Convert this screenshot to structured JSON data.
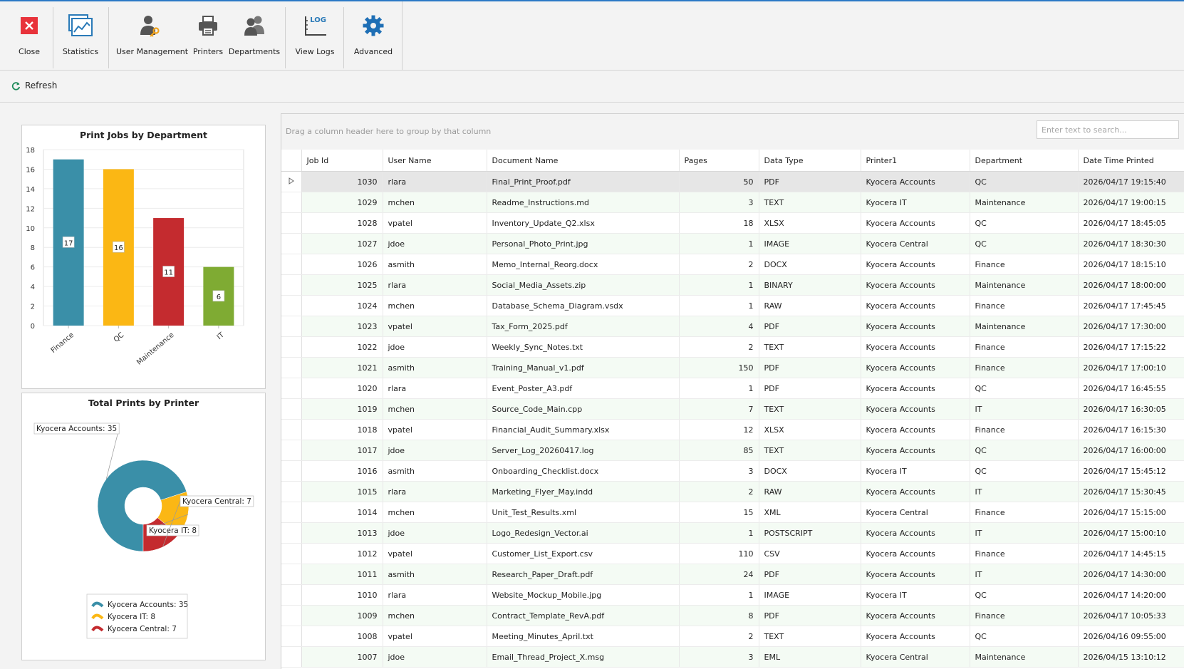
{
  "ribbon": {
    "close": "Close",
    "statistics": "Statistics",
    "user_management": "User Management",
    "printers": "Printers",
    "departments": "Departments",
    "view_logs": "View Logs",
    "view_logs_icon_text": "LOG",
    "advanced": "Advanced"
  },
  "toolbar": {
    "refresh": "Refresh"
  },
  "colors": {
    "teal": "#3a8fa8",
    "yellow": "#fbb714",
    "red": "#c42b2f",
    "green": "#7fab33",
    "accent": "#2b79c6"
  },
  "bar_chart": {
    "chart_data": {
      "type": "bar",
      "title": "Print Jobs by Department",
      "categories": [
        "Finance",
        "QC",
        "Maintenance",
        "IT"
      ],
      "values": [
        17,
        16,
        11,
        6
      ],
      "yticks": [
        "0",
        "2",
        "4",
        "6",
        "8",
        "10",
        "12",
        "14",
        "16",
        "18"
      ],
      "ylim": [
        0,
        18
      ],
      "colors": [
        "#3a8fa8",
        "#fbb714",
        "#c42b2f",
        "#7fab33"
      ]
    }
  },
  "pie_chart": {
    "chart_data": {
      "type": "pie",
      "title": "Total Prints by Printer",
      "labels": [
        "Kyocera Accounts",
        "Kyocera IT",
        "Kyocera Central"
      ],
      "values": [
        35,
        8,
        7
      ],
      "callouts": [
        "Kyocera Accounts: 35",
        "Kyocera IT: 8",
        "Kyocera Central: 7"
      ],
      "legend": [
        "Kyocera Accounts: 35",
        "Kyocera IT: 8",
        "Kyocera Central: 7"
      ],
      "colors": [
        "#3a8fa8",
        "#fbb714",
        "#c42b2f"
      ]
    }
  },
  "grid": {
    "group_hint": "Drag a column header here to group by that column",
    "search_placeholder": "Enter text to search...",
    "columns": [
      "Job Id",
      "User Name",
      "Document Name",
      "Pages",
      "Data Type",
      "Printer1",
      "Department",
      "Date Time Printed"
    ],
    "rows": [
      [
        "1030",
        "rlara",
        "Final_Print_Proof.pdf",
        "50",
        "PDF",
        "Kyocera Accounts",
        "QC",
        "2026/04/17 19:15:40"
      ],
      [
        "1029",
        "mchen",
        "Readme_Instructions.md",
        "3",
        "TEXT",
        "Kyocera IT",
        "Maintenance",
        "2026/04/17 19:00:15"
      ],
      [
        "1028",
        "vpatel",
        "Inventory_Update_Q2.xlsx",
        "18",
        "XLSX",
        "Kyocera Accounts",
        "QC",
        "2026/04/17 18:45:05"
      ],
      [
        "1027",
        "jdoe",
        "Personal_Photo_Print.jpg",
        "1",
        "IMAGE",
        "Kyocera Central",
        "QC",
        "2026/04/17 18:30:30"
      ],
      [
        "1026",
        "asmith",
        "Memo_Internal_Reorg.docx",
        "2",
        "DOCX",
        "Kyocera Accounts",
        "Finance",
        "2026/04/17 18:15:10"
      ],
      [
        "1025",
        "rlara",
        "Social_Media_Assets.zip",
        "1",
        "BINARY",
        "Kyocera Accounts",
        "Maintenance",
        "2026/04/17 18:00:00"
      ],
      [
        "1024",
        "mchen",
        "Database_Schema_Diagram.vsdx",
        "1",
        "RAW",
        "Kyocera Accounts",
        "Finance",
        "2026/04/17 17:45:45"
      ],
      [
        "1023",
        "vpatel",
        "Tax_Form_2025.pdf",
        "4",
        "PDF",
        "Kyocera Accounts",
        "Maintenance",
        "2026/04/17 17:30:00"
      ],
      [
        "1022",
        "jdoe",
        "Weekly_Sync_Notes.txt",
        "2",
        "TEXT",
        "Kyocera Accounts",
        "Finance",
        "2026/04/17 17:15:22"
      ],
      [
        "1021",
        "asmith",
        "Training_Manual_v1.pdf",
        "150",
        "PDF",
        "Kyocera Accounts",
        "Finance",
        "2026/04/17 17:00:10"
      ],
      [
        "1020",
        "rlara",
        "Event_Poster_A3.pdf",
        "1",
        "PDF",
        "Kyocera Accounts",
        "QC",
        "2026/04/17 16:45:55"
      ],
      [
        "1019",
        "mchen",
        "Source_Code_Main.cpp",
        "7",
        "TEXT",
        "Kyocera Accounts",
        "IT",
        "2026/04/17 16:30:05"
      ],
      [
        "1018",
        "vpatel",
        "Financial_Audit_Summary.xlsx",
        "12",
        "XLSX",
        "Kyocera Accounts",
        "Finance",
        "2026/04/17 16:15:30"
      ],
      [
        "1017",
        "jdoe",
        "Server_Log_20260417.log",
        "85",
        "TEXT",
        "Kyocera Accounts",
        "QC",
        "2026/04/17 16:00:00"
      ],
      [
        "1016",
        "asmith",
        "Onboarding_Checklist.docx",
        "3",
        "DOCX",
        "Kyocera IT",
        "QC",
        "2026/04/17 15:45:12"
      ],
      [
        "1015",
        "rlara",
        "Marketing_Flyer_May.indd",
        "2",
        "RAW",
        "Kyocera Accounts",
        "IT",
        "2026/04/17 15:30:45"
      ],
      [
        "1014",
        "mchen",
        "Unit_Test_Results.xml",
        "15",
        "XML",
        "Kyocera Central",
        "Finance",
        "2026/04/17 15:15:00"
      ],
      [
        "1013",
        "jdoe",
        "Logo_Redesign_Vector.ai",
        "1",
        "POSTSCRIPT",
        "Kyocera Accounts",
        "IT",
        "2026/04/17 15:00:10"
      ],
      [
        "1012",
        "vpatel",
        "Customer_List_Export.csv",
        "110",
        "CSV",
        "Kyocera Accounts",
        "Finance",
        "2026/04/17 14:45:15"
      ],
      [
        "1011",
        "asmith",
        "Research_Paper_Draft.pdf",
        "24",
        "PDF",
        "Kyocera Accounts",
        "IT",
        "2026/04/17 14:30:00"
      ],
      [
        "1010",
        "rlara",
        "Website_Mockup_Mobile.jpg",
        "1",
        "IMAGE",
        "Kyocera IT",
        "QC",
        "2026/04/17 14:20:00"
      ],
      [
        "1009",
        "mchen",
        "Contract_Template_RevA.pdf",
        "8",
        "PDF",
        "Kyocera Accounts",
        "Finance",
        "2026/04/17 10:05:33"
      ],
      [
        "1008",
        "vpatel",
        "Meeting_Minutes_April.txt",
        "2",
        "TEXT",
        "Kyocera Accounts",
        "QC",
        "2026/04/16 09:55:00"
      ],
      [
        "1007",
        "jdoe",
        "Email_Thread_Project_X.msg",
        "3",
        "EML",
        "Kyocera Central",
        "Maintenance",
        "2026/04/15 13:10:12"
      ]
    ]
  }
}
